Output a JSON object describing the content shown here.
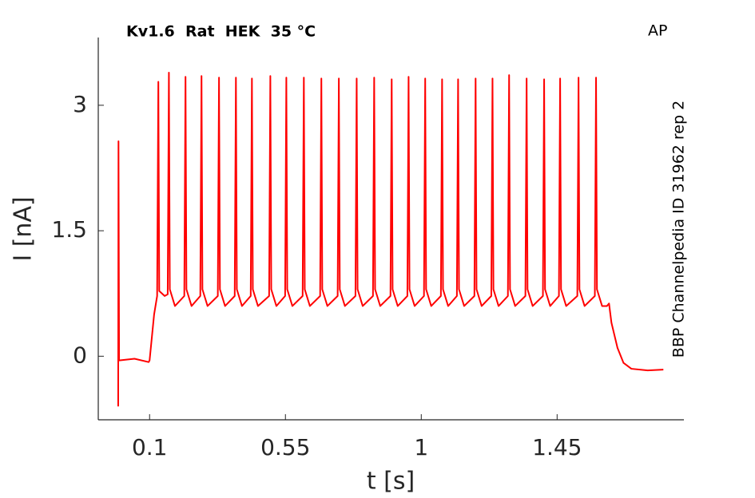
{
  "chart_data": {
    "type": "line",
    "title": "Kv1.6  Rat  HEK  35 °C",
    "annotation": "AP",
    "side_label": "BBP Channelpedia ID 31962 rep 2",
    "xlabel": "t [s]",
    "ylabel": "I [nA]",
    "xlim": [
      -0.07,
      1.87
    ],
    "ylim": [
      -0.76,
      3.81
    ],
    "xticks": [
      0.1,
      0.55,
      1,
      1.45
    ],
    "yticks": [
      0,
      1.5,
      3
    ],
    "grid": false,
    "series": [
      {
        "color": "#ff0000",
        "x": [
          -0.004,
          -0.003,
          -0.001,
          0.05,
          0.097,
          0.1,
          0.115,
          0.125,
          0.129,
          0.132,
          0.15,
          0.16,
          0.164,
          0.167,
          0.184,
          0.215,
          0.219,
          0.222,
          0.239,
          0.268,
          0.272,
          0.275,
          0.292,
          0.326,
          0.33,
          0.333,
          0.35,
          0.382,
          0.386,
          0.389,
          0.406,
          0.435,
          0.439,
          0.442,
          0.459,
          0.496,
          0.5,
          0.503,
          0.52,
          0.549,
          0.553,
          0.556,
          0.573,
          0.607,
          0.611,
          0.614,
          0.631,
          0.665,
          0.669,
          0.672,
          0.689,
          0.723,
          0.727,
          0.73,
          0.747,
          0.782,
          0.786,
          0.789,
          0.806,
          0.84,
          0.844,
          0.847,
          0.864,
          0.898,
          0.902,
          0.905,
          0.922,
          0.954,
          0.958,
          0.961,
          0.978,
          1.009,
          1.013,
          1.016,
          1.033,
          1.065,
          1.069,
          1.072,
          1.089,
          1.118,
          1.122,
          1.125,
          1.142,
          1.176,
          1.18,
          1.183,
          1.2,
          1.232,
          1.236,
          1.239,
          1.256,
          1.287,
          1.291,
          1.294,
          1.311,
          1.345,
          1.349,
          1.352,
          1.369,
          1.403,
          1.407,
          1.41,
          1.427,
          1.456,
          1.46,
          1.463,
          1.48,
          1.517,
          1.521,
          1.524,
          1.541,
          1.575,
          1.579,
          1.582,
          1.599,
          1.615,
          1.622,
          1.63,
          1.65,
          1.67,
          1.696,
          1.75,
          1.802
        ],
        "values": [
          -0.6,
          2.57,
          -0.05,
          -0.03,
          -0.07,
          -0.05,
          0.5,
          0.72,
          3.28,
          0.78,
          0.72,
          0.74,
          3.39,
          0.8,
          0.6,
          0.72,
          3.34,
          0.8,
          0.6,
          0.72,
          3.35,
          0.8,
          0.6,
          0.72,
          3.33,
          0.8,
          0.6,
          0.72,
          3.33,
          0.8,
          0.6,
          0.72,
          3.32,
          0.8,
          0.6,
          0.72,
          3.35,
          0.8,
          0.6,
          0.72,
          3.33,
          0.8,
          0.6,
          0.72,
          3.33,
          0.8,
          0.6,
          0.72,
          3.32,
          0.8,
          0.6,
          0.72,
          3.32,
          0.8,
          0.6,
          0.72,
          3.32,
          0.8,
          0.6,
          0.72,
          3.33,
          0.8,
          0.6,
          0.72,
          3.31,
          0.8,
          0.6,
          0.72,
          3.34,
          0.8,
          0.6,
          0.72,
          3.32,
          0.8,
          0.6,
          0.72,
          3.31,
          0.8,
          0.6,
          0.72,
          3.31,
          0.8,
          0.6,
          0.72,
          3.32,
          0.8,
          0.6,
          0.72,
          3.32,
          0.8,
          0.6,
          0.72,
          3.36,
          0.8,
          0.6,
          0.72,
          3.32,
          0.8,
          0.6,
          0.72,
          3.31,
          0.8,
          0.6,
          0.72,
          3.32,
          0.8,
          0.6,
          0.72,
          3.33,
          0.8,
          0.6,
          0.72,
          3.33,
          0.8,
          0.6,
          0.6,
          0.63,
          0.4,
          0.1,
          -0.08,
          -0.15,
          -0.17,
          -0.16
        ]
      }
    ]
  }
}
